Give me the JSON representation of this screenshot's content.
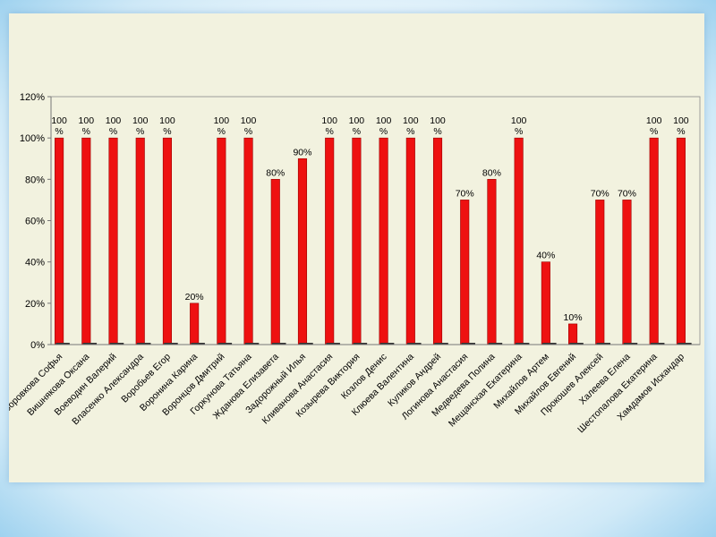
{
  "chart_data": {
    "type": "bar",
    "categories": [
      "Боровкова Софья",
      "Вишнякова Оксана",
      "Воеводин Валерий",
      "Власенко Александра",
      "Воробьев Егор",
      "Воронина Карина",
      "Воронцов Дмитрий",
      "Горкунова Татьяна",
      "Жданова Елизавета",
      "Задорожный Илья",
      "Кливанова Анастасия",
      "Козырева Виктория",
      "Козлов Денис",
      "Клюева Валентина",
      "Куликов Андрей",
      "Логинова Анастасия",
      "Медведева Полина",
      "Мещанская Екатерина",
      "Михайлов Артем",
      "Михайлов Евгений",
      "Прокошев Алексей",
      "Халеева Елена",
      "Шестопалова Екатерина",
      "Хамдамов Искандар"
    ],
    "values": [
      100,
      100,
      100,
      100,
      100,
      20,
      100,
      100,
      80,
      90,
      100,
      100,
      100,
      100,
      100,
      70,
      80,
      100,
      40,
      10,
      70,
      70,
      100,
      100
    ],
    "data_labels": [
      "100 %",
      "100 %",
      "100 %",
      "100 %",
      "100 %",
      "20%",
      "100 %",
      "100 %",
      "80%",
      "90%",
      "100 %",
      "100 %",
      "100 %",
      "100 %",
      "100 %",
      "70%",
      "80%",
      "100 %",
      "40%",
      "10%",
      "70%",
      "70%",
      "100 %",
      "100 %"
    ],
    "y_ticks": [
      "0%",
      "20%",
      "40%",
      "60%",
      "80%",
      "100%",
      "120%"
    ],
    "ylim": [
      0,
      120
    ],
    "bar_color": "#ee1111",
    "bar_outline": "#9a0000",
    "plot_background": "#f2f2df",
    "grid": false,
    "legend": "none",
    "title": "",
    "xlabel": "",
    "ylabel": ""
  }
}
